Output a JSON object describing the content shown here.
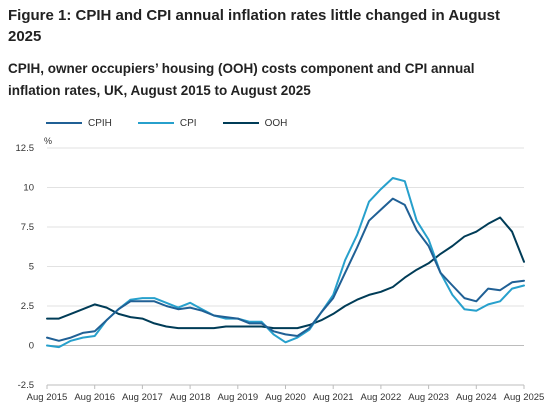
{
  "header": {
    "title": "Figure 1: CPIH and CPI annual inflation rates little changed in August 2025",
    "subtitle": "CPIH, owner occupiers’ housing (OOH) costs component and CPI annual inflation rates, UK, August 2015 to August 2025"
  },
  "chart_data": {
    "type": "line",
    "title": "Figure 1: CPIH and CPI annual inflation rates little changed in August 2025",
    "subtitle": "CPIH, owner occupiers’ housing (OOH) costs component and CPI annual inflation rates, UK, August 2015 to August 2025",
    "xlabel": "",
    "ylabel": "%",
    "ylim": [
      -2.5,
      12.5
    ],
    "yticks": [
      -2.5,
      0,
      2.5,
      5,
      7.5,
      10,
      12.5
    ],
    "ytick_labels": [
      "-2.5",
      "0",
      "2.5",
      "5",
      "7.5",
      "10",
      "12.5"
    ],
    "xticks": [
      0,
      12,
      24,
      36,
      48,
      60,
      72,
      84,
      96,
      108,
      120
    ],
    "xtick_labels": [
      "Aug 2015",
      "Aug 2016",
      "Aug 2017",
      "Aug 2018",
      "Aug 2019",
      "Aug 2020",
      "Aug 2021",
      "Aug 2022",
      "Aug 2023",
      "Aug 2024",
      "Aug 2025"
    ],
    "x_unit": "months since Aug 2015",
    "grid": "horizontal",
    "legend_position": "top-left",
    "series": [
      {
        "name": "CPIH",
        "color": "#206095",
        "points": [
          [
            0,
            0.5
          ],
          [
            3,
            0.3
          ],
          [
            6,
            0.5
          ],
          [
            9,
            0.8
          ],
          [
            12,
            0.9
          ],
          [
            15,
            1.6
          ],
          [
            18,
            2.3
          ],
          [
            21,
            2.8
          ],
          [
            24,
            2.8
          ],
          [
            27,
            2.8
          ],
          [
            30,
            2.5
          ],
          [
            33,
            2.3
          ],
          [
            36,
            2.4
          ],
          [
            39,
            2.2
          ],
          [
            42,
            1.9
          ],
          [
            45,
            1.8
          ],
          [
            48,
            1.7
          ],
          [
            51,
            1.4
          ],
          [
            54,
            1.4
          ],
          [
            57,
            0.9
          ],
          [
            60,
            0.7
          ],
          [
            63,
            0.6
          ],
          [
            66,
            1.1
          ],
          [
            69,
            2.1
          ],
          [
            72,
            3.0
          ],
          [
            75,
            4.6
          ],
          [
            78,
            6.2
          ],
          [
            81,
            7.9
          ],
          [
            84,
            8.6
          ],
          [
            87,
            9.3
          ],
          [
            90,
            8.9
          ],
          [
            93,
            7.3
          ],
          [
            96,
            6.3
          ],
          [
            99,
            4.6
          ],
          [
            102,
            3.8
          ],
          [
            105,
            3.0
          ],
          [
            108,
            2.8
          ],
          [
            111,
            3.6
          ],
          [
            114,
            3.5
          ],
          [
            117,
            4.0
          ],
          [
            120,
            4.1
          ]
        ]
      },
      {
        "name": "CPI",
        "color": "#27a0cc",
        "points": [
          [
            0,
            0.0
          ],
          [
            3,
            -0.1
          ],
          [
            6,
            0.3
          ],
          [
            9,
            0.5
          ],
          [
            12,
            0.6
          ],
          [
            15,
            1.6
          ],
          [
            18,
            2.3
          ],
          [
            21,
            2.9
          ],
          [
            24,
            3.0
          ],
          [
            27,
            3.0
          ],
          [
            30,
            2.7
          ],
          [
            33,
            2.4
          ],
          [
            36,
            2.7
          ],
          [
            39,
            2.3
          ],
          [
            42,
            1.9
          ],
          [
            45,
            1.7
          ],
          [
            48,
            1.7
          ],
          [
            51,
            1.5
          ],
          [
            54,
            1.5
          ],
          [
            57,
            0.7
          ],
          [
            60,
            0.2
          ],
          [
            63,
            0.5
          ],
          [
            66,
            1.0
          ],
          [
            69,
            2.1
          ],
          [
            72,
            3.2
          ],
          [
            75,
            5.4
          ],
          [
            78,
            7.0
          ],
          [
            81,
            9.1
          ],
          [
            84,
            9.9
          ],
          [
            87,
            10.6
          ],
          [
            90,
            10.4
          ],
          [
            93,
            7.9
          ],
          [
            96,
            6.7
          ],
          [
            99,
            4.6
          ],
          [
            102,
            3.2
          ],
          [
            105,
            2.3
          ],
          [
            108,
            2.2
          ],
          [
            111,
            2.6
          ],
          [
            114,
            2.8
          ],
          [
            117,
            3.6
          ],
          [
            120,
            3.8
          ]
        ]
      },
      {
        "name": "OOH",
        "color": "#003c57",
        "points": [
          [
            0,
            1.7
          ],
          [
            3,
            1.7
          ],
          [
            6,
            2.0
          ],
          [
            9,
            2.3
          ],
          [
            12,
            2.6
          ],
          [
            15,
            2.4
          ],
          [
            18,
            2.0
          ],
          [
            21,
            1.8
          ],
          [
            24,
            1.7
          ],
          [
            27,
            1.4
          ],
          [
            30,
            1.2
          ],
          [
            33,
            1.1
          ],
          [
            36,
            1.1
          ],
          [
            39,
            1.1
          ],
          [
            42,
            1.1
          ],
          [
            45,
            1.2
          ],
          [
            48,
            1.2
          ],
          [
            51,
            1.2
          ],
          [
            54,
            1.2
          ],
          [
            57,
            1.1
          ],
          [
            60,
            1.1
          ],
          [
            63,
            1.1
          ],
          [
            66,
            1.3
          ],
          [
            69,
            1.6
          ],
          [
            72,
            2.0
          ],
          [
            75,
            2.5
          ],
          [
            78,
            2.9
          ],
          [
            81,
            3.2
          ],
          [
            84,
            3.4
          ],
          [
            87,
            3.7
          ],
          [
            90,
            4.3
          ],
          [
            93,
            4.8
          ],
          [
            96,
            5.2
          ],
          [
            99,
            5.8
          ],
          [
            102,
            6.3
          ],
          [
            105,
            6.9
          ],
          [
            108,
            7.2
          ],
          [
            111,
            7.7
          ],
          [
            114,
            8.1
          ],
          [
            117,
            7.2
          ],
          [
            120,
            5.3
          ]
        ]
      }
    ]
  }
}
